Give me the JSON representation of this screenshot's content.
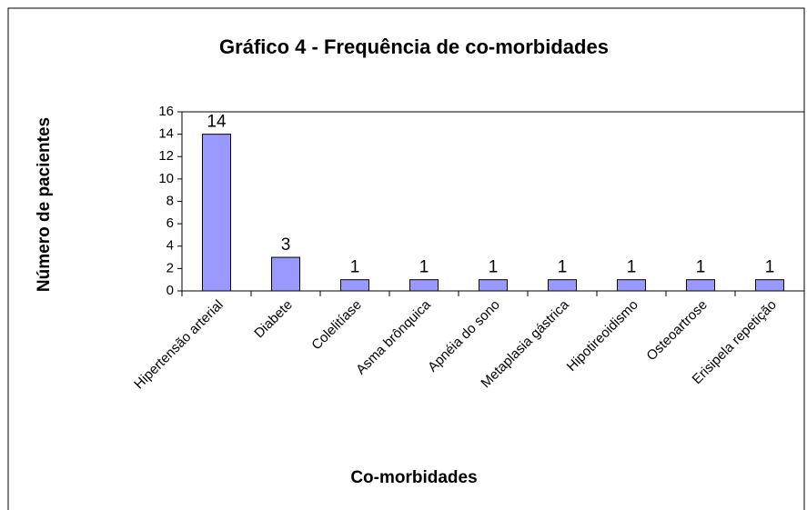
{
  "chart_data": {
    "type": "bar",
    "title": "Gráfico 4 - Frequência de co-morbidades",
    "x_label": "Co-morbidades",
    "y_label": "Número de pacientes",
    "categories": [
      "Hipertensão arterial",
      "Diabete",
      "Colelitíase",
      "Asma brônquica",
      "Apnéia do sono",
      "Metaplasia gástrica",
      "Hipotireoidismo",
      "Osteoartrose",
      "Erisipela repetição"
    ],
    "values": [
      14,
      3,
      1,
      1,
      1,
      1,
      1,
      1,
      1
    ],
    "color": "#9999ff",
    "ylim": [
      0,
      16
    ],
    "yticks": [
      0,
      2,
      4,
      6,
      8,
      10,
      12,
      14,
      16
    ],
    "grid": false
  }
}
